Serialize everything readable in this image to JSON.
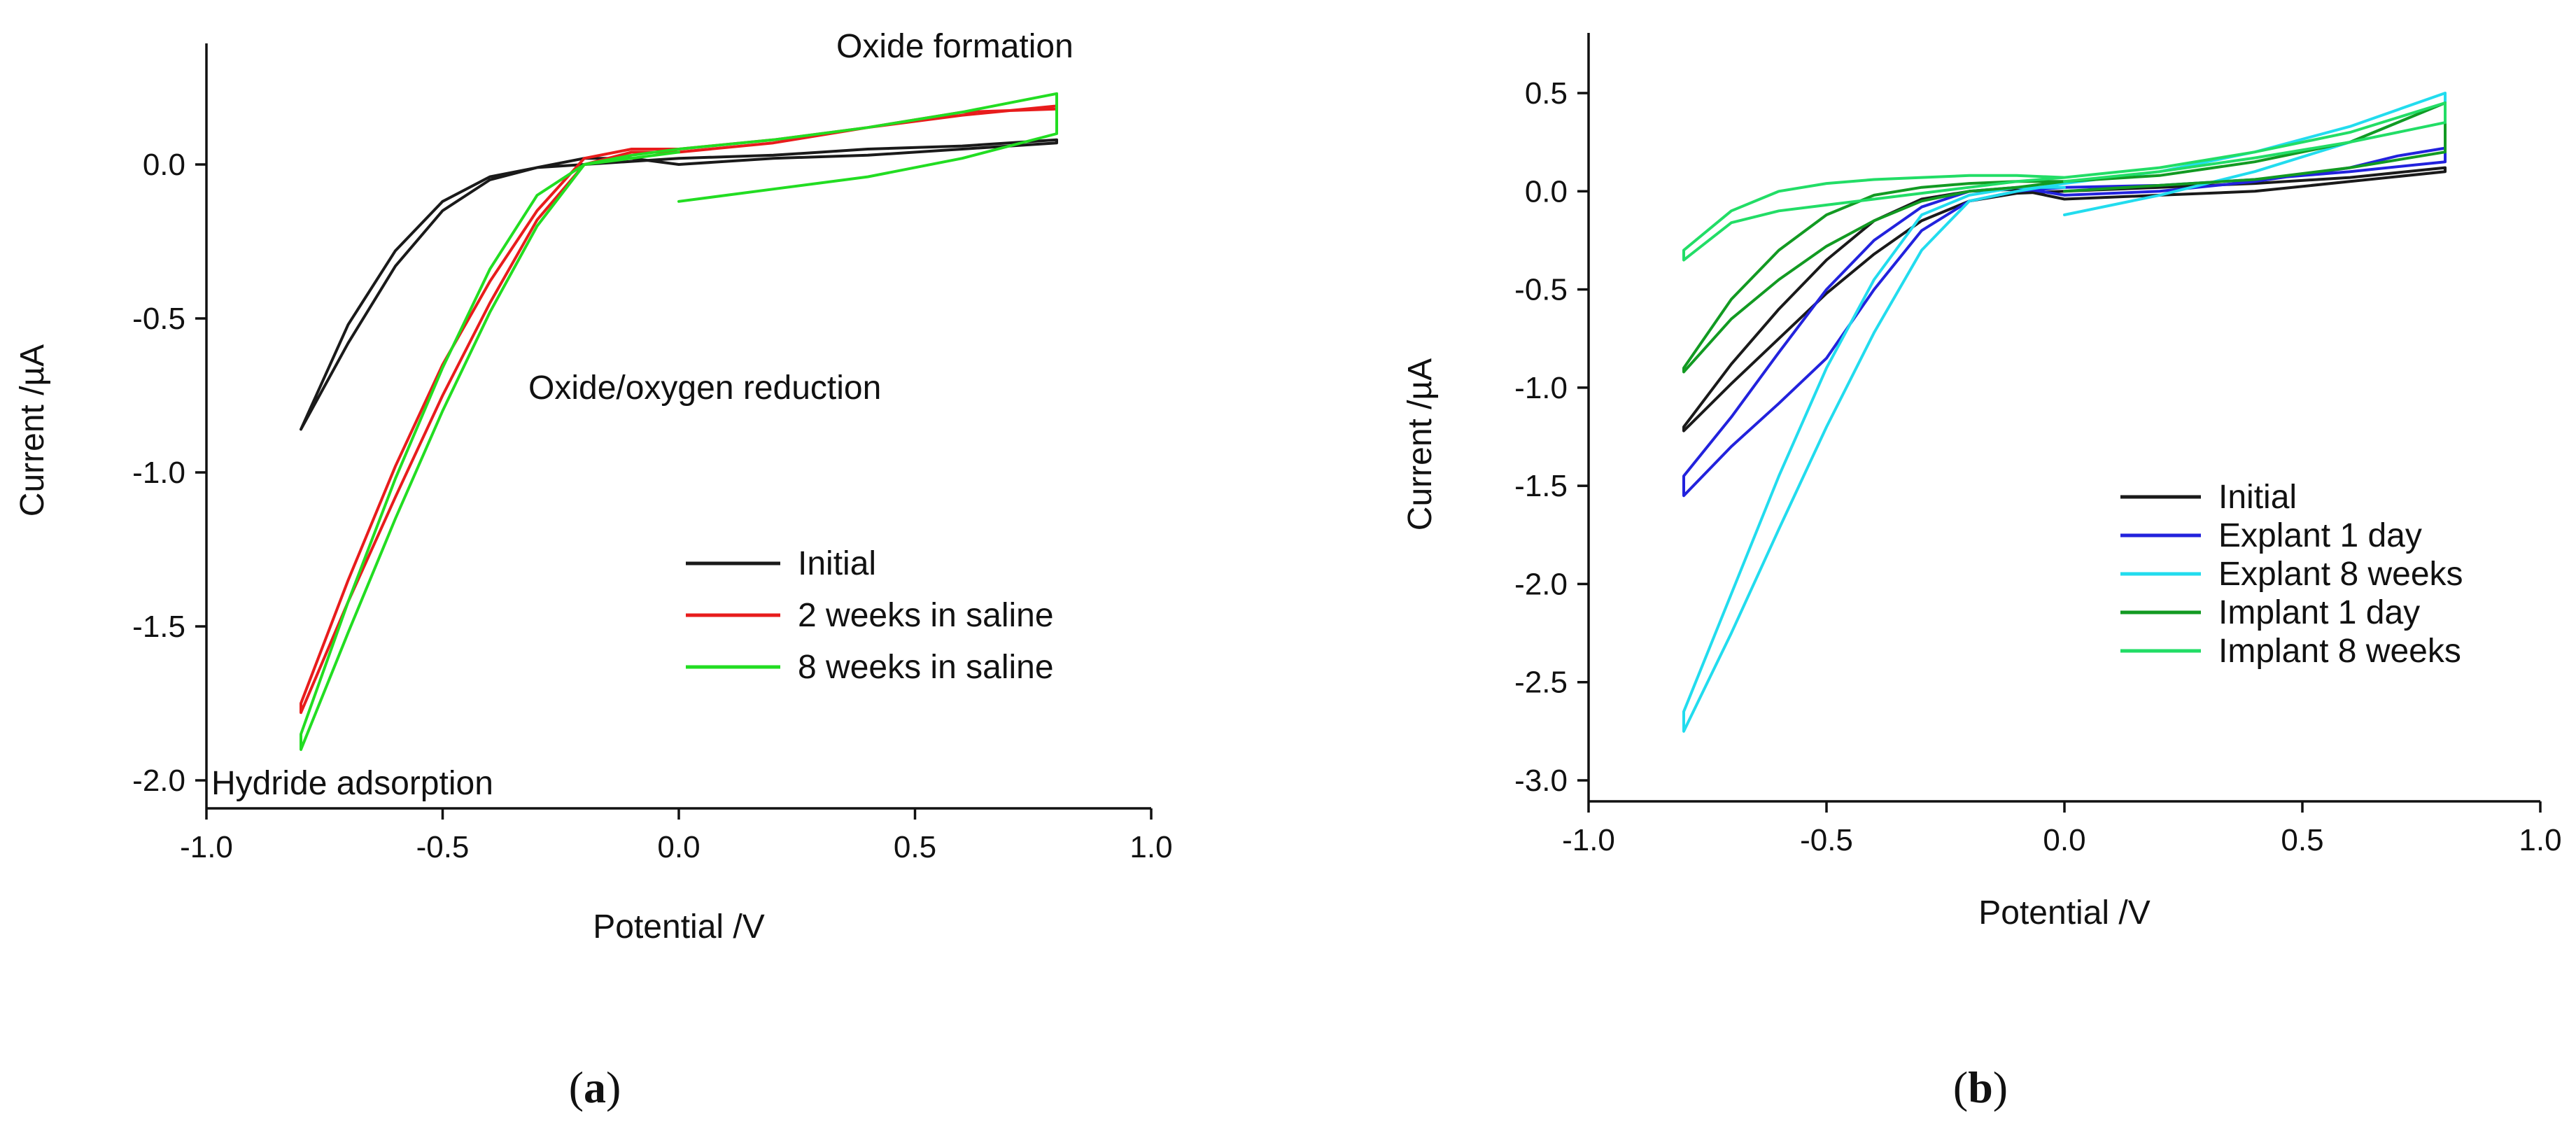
{
  "figure": {
    "panel_labels": [
      {
        "open": "(",
        "letter": "a",
        "close": ")"
      },
      {
        "open": "(",
        "letter": "b",
        "close": ")"
      }
    ]
  },
  "chart_data": [
    {
      "type": "line",
      "panel": "a",
      "title": "",
      "xlabel": "Potential /V",
      "ylabel": "Current /µA",
      "xlim": [
        -1.0,
        1.0
      ],
      "ylim": [
        -2.0,
        0.4
      ],
      "xticks": [
        -1.0,
        -0.5,
        0.0,
        0.5,
        1.0
      ],
      "xtick_labels": [
        "-1.0",
        "-0.5",
        "0.0",
        "0.5",
        "1.0"
      ],
      "yticks": [
        0.0,
        -0.5,
        -1.0,
        -1.5,
        -2.0
      ],
      "ytick_labels": [
        "0.0",
        "-0.5",
        "-1.0",
        "-1.5",
        "-2.0"
      ],
      "annotations": [
        {
          "text": "Oxide formation",
          "x": 0.65,
          "y": 0.37
        },
        {
          "text": "Oxide/oxygen reduction",
          "x": -0.31,
          "y": -0.71
        },
        {
          "text": "Hydride adsorption",
          "x": -0.99,
          "y": -1.97
        }
      ],
      "legend_position": "lower-right",
      "series": [
        {
          "name": "Initial",
          "color": "#1a1a1a",
          "x": [
            0.0,
            0.2,
            0.4,
            0.6,
            0.8,
            0.8,
            0.6,
            0.4,
            0.2,
            0.0,
            -0.1,
            -0.2,
            -0.3,
            -0.4,
            -0.5,
            -0.6,
            -0.7,
            -0.8,
            -0.8,
            -0.7,
            -0.6,
            -0.5,
            -0.4,
            -0.3,
            -0.2,
            -0.1,
            0.0
          ],
          "y": [
            0.0,
            0.02,
            0.03,
            0.05,
            0.07,
            0.08,
            0.06,
            0.05,
            0.03,
            0.02,
            0.01,
            0.0,
            -0.01,
            -0.04,
            -0.12,
            -0.28,
            -0.52,
            -0.86,
            -0.86,
            -0.58,
            -0.33,
            -0.15,
            -0.05,
            -0.01,
            0.02,
            0.02,
            0.0
          ]
        },
        {
          "name": "2 weeks in saline",
          "color": "#e81c1c",
          "x": [
            0.0,
            0.2,
            0.4,
            0.6,
            0.8,
            0.8,
            0.6,
            0.4,
            0.2,
            0.0,
            -0.1,
            -0.2,
            -0.3,
            -0.4,
            -0.5,
            -0.6,
            -0.7,
            -0.8,
            -0.8,
            -0.7,
            -0.6,
            -0.5,
            -0.4,
            -0.3,
            -0.2,
            -0.1,
            0.0
          ],
          "y": [
            0.05,
            0.08,
            0.12,
            0.16,
            0.19,
            0.18,
            0.17,
            0.12,
            0.07,
            0.04,
            0.04,
            0.0,
            -0.18,
            -0.45,
            -0.75,
            -1.08,
            -1.42,
            -1.78,
            -1.75,
            -1.35,
            -0.98,
            -0.65,
            -0.38,
            -0.15,
            0.02,
            0.05,
            0.05
          ]
        },
        {
          "name": "8 weeks in saline",
          "color": "#22dd22",
          "x": [
            0.0,
            0.2,
            0.4,
            0.6,
            0.8,
            0.8,
            0.6,
            0.4,
            0.2,
            0.0,
            -0.1,
            -0.2,
            -0.3,
            -0.4,
            -0.5,
            -0.6,
            -0.7,
            -0.8,
            -0.8,
            -0.7,
            -0.6,
            -0.5,
            -0.4,
            -0.3,
            -0.2,
            -0.1,
            0.0
          ],
          "y": [
            -0.12,
            -0.08,
            -0.04,
            0.02,
            0.1,
            0.23,
            0.17,
            0.12,
            0.08,
            0.05,
            0.03,
            0.0,
            -0.2,
            -0.48,
            -0.8,
            -1.15,
            -1.52,
            -1.9,
            -1.85,
            -1.42,
            -1.02,
            -0.66,
            -0.34,
            -0.1,
            0.0,
            0.02,
            0.04
          ]
        }
      ]
    },
    {
      "type": "line",
      "panel": "b",
      "title": "",
      "xlabel": "Potential /V",
      "ylabel": "Current /µA",
      "xlim": [
        -1.0,
        1.0
      ],
      "ylim": [
        -3.1,
        0.8
      ],
      "xticks": [
        -1.0,
        -0.5,
        0.0,
        0.5,
        1.0
      ],
      "xtick_labels": [
        "-1.0",
        "-0.5",
        "0.0",
        "0.5",
        "1.0"
      ],
      "yticks": [
        0.5,
        0.0,
        -0.5,
        -1.0,
        -1.5,
        -2.0,
        -2.5,
        -3.0
      ],
      "ytick_labels": [
        "0.5",
        "0.0",
        "-0.5",
        "-1.0",
        "-1.5",
        "-2.0",
        "-2.5",
        "-3.0"
      ],
      "legend_position": "lower-right",
      "series": [
        {
          "name": "Initial",
          "color": "#1a1a1a",
          "x": [
            0.0,
            0.2,
            0.4,
            0.6,
            0.8,
            0.8,
            0.6,
            0.4,
            0.2,
            0.0,
            -0.1,
            -0.2,
            -0.3,
            -0.4,
            -0.5,
            -0.6,
            -0.7,
            -0.8,
            -0.8,
            -0.7,
            -0.6,
            -0.5,
            -0.4,
            -0.3,
            -0.2,
            -0.1,
            0.0
          ],
          "y": [
            -0.04,
            -0.02,
            0.0,
            0.05,
            0.1,
            0.12,
            0.07,
            0.04,
            0.02,
            0.0,
            -0.01,
            -0.05,
            -0.15,
            -0.32,
            -0.52,
            -0.75,
            -0.98,
            -1.22,
            -1.2,
            -0.88,
            -0.6,
            -0.35,
            -0.15,
            -0.04,
            0.0,
            0.01,
            -0.04
          ]
        },
        {
          "name": "Explant 1 day",
          "color": "#2222dd",
          "x": [
            0.0,
            0.2,
            0.4,
            0.6,
            0.7,
            0.8,
            0.8,
            0.6,
            0.4,
            0.2,
            0.0,
            -0.1,
            -0.2,
            -0.3,
            -0.4,
            -0.5,
            -0.6,
            -0.7,
            -0.8,
            -0.8,
            -0.7,
            -0.6,
            -0.5,
            -0.4,
            -0.3,
            -0.2,
            -0.1,
            0.0
          ],
          "y": [
            -0.02,
            0.0,
            0.05,
            0.12,
            0.18,
            0.22,
            0.15,
            0.1,
            0.06,
            0.03,
            0.02,
            0.0,
            -0.05,
            -0.2,
            -0.5,
            -0.85,
            -1.08,
            -1.3,
            -1.55,
            -1.45,
            -1.15,
            -0.82,
            -0.5,
            -0.25,
            -0.08,
            0.0,
            0.02,
            -0.02
          ]
        },
        {
          "name": "Explant 8 weeks",
          "color": "#22dcee",
          "x": [
            0.0,
            0.2,
            0.4,
            0.6,
            0.8,
            0.8,
            0.6,
            0.4,
            0.2,
            0.0,
            -0.1,
            -0.2,
            -0.3,
            -0.4,
            -0.5,
            -0.6,
            -0.7,
            -0.8,
            -0.8,
            -0.7,
            -0.6,
            -0.5,
            -0.4,
            -0.3,
            -0.2,
            -0.1,
            0.0
          ],
          "y": [
            -0.12,
            -0.02,
            0.1,
            0.25,
            0.45,
            0.5,
            0.33,
            0.2,
            0.1,
            0.04,
            0.0,
            -0.05,
            -0.3,
            -0.72,
            -1.2,
            -1.72,
            -2.25,
            -2.75,
            -2.65,
            -2.05,
            -1.45,
            -0.9,
            -0.45,
            -0.12,
            -0.02,
            0.02,
            0.02
          ]
        },
        {
          "name": "Implant 1 day",
          "color": "#129a22",
          "x": [
            0.0,
            0.2,
            0.4,
            0.6,
            0.8,
            0.8,
            0.6,
            0.4,
            0.2,
            0.0,
            -0.1,
            -0.2,
            -0.3,
            -0.4,
            -0.5,
            -0.6,
            -0.7,
            -0.8,
            -0.8,
            -0.7,
            -0.6,
            -0.5,
            -0.4,
            -0.3,
            -0.2,
            -0.1,
            0.0
          ],
          "y": [
            0.0,
            0.03,
            0.06,
            0.12,
            0.2,
            0.45,
            0.25,
            0.15,
            0.08,
            0.05,
            0.02,
            0.0,
            -0.05,
            -0.15,
            -0.28,
            -0.45,
            -0.65,
            -0.92,
            -0.9,
            -0.55,
            -0.3,
            -0.12,
            -0.02,
            0.02,
            0.04,
            0.05,
            0.05
          ]
        },
        {
          "name": "Implant 8 weeks",
          "color": "#22dd66",
          "x": [
            0.0,
            0.2,
            0.4,
            0.6,
            0.8,
            0.8,
            0.6,
            0.4,
            0.2,
            0.0,
            -0.1,
            -0.2,
            -0.3,
            -0.4,
            -0.5,
            -0.6,
            -0.7,
            -0.8,
            -0.8,
            -0.7,
            -0.6,
            -0.5,
            -0.4,
            -0.3,
            -0.2,
            -0.1,
            0.0
          ],
          "y": [
            0.05,
            0.1,
            0.17,
            0.25,
            0.35,
            0.45,
            0.3,
            0.2,
            0.12,
            0.07,
            0.05,
            0.02,
            -0.01,
            -0.04,
            -0.07,
            -0.1,
            -0.16,
            -0.35,
            -0.3,
            -0.1,
            0.0,
            0.04,
            0.06,
            0.07,
            0.08,
            0.08,
            0.07
          ]
        }
      ]
    }
  ]
}
